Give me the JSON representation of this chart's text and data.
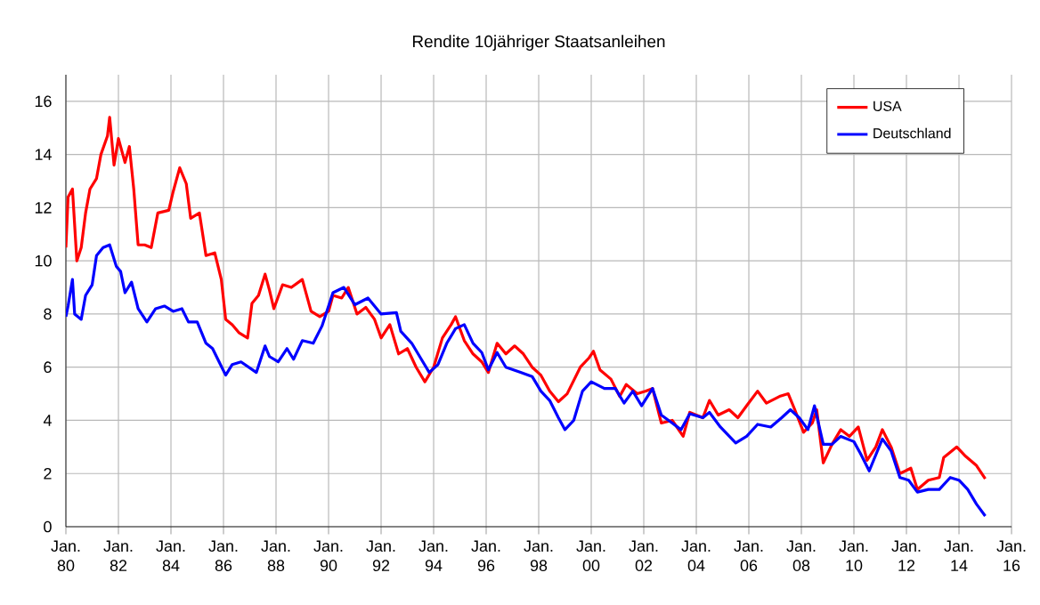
{
  "chart_data": {
    "type": "line",
    "title": "Rendite 10jähriger Staatsanleihen",
    "xlim": [
      "1980-01",
      "2016-01"
    ],
    "ylim": [
      0,
      17
    ],
    "xticks": [
      {
        "value": "1980-01",
        "label": "Jan. 80"
      },
      {
        "value": "1982-01",
        "label": "Jan. 82"
      },
      {
        "value": "1984-01",
        "label": "Jan. 84"
      },
      {
        "value": "1986-01",
        "label": "Jan. 86"
      },
      {
        "value": "1988-01",
        "label": "Jan. 88"
      },
      {
        "value": "1990-01",
        "label": "Jan. 90"
      },
      {
        "value": "1992-01",
        "label": "Jan. 92"
      },
      {
        "value": "1994-01",
        "label": "Jan. 94"
      },
      {
        "value": "1996-01",
        "label": "Jan. 96"
      },
      {
        "value": "1998-01",
        "label": "Jan. 98"
      },
      {
        "value": "2000-01",
        "label": "Jan. 00"
      },
      {
        "value": "2002-01",
        "label": "Jan. 02"
      },
      {
        "value": "2004-01",
        "label": "Jan. 04"
      },
      {
        "value": "2006-01",
        "label": "Jan. 06"
      },
      {
        "value": "2008-01",
        "label": "Jan. 08"
      },
      {
        "value": "2010-01",
        "label": "Jan. 10"
      },
      {
        "value": "2012-01",
        "label": "Jan. 12"
      },
      {
        "value": "2014-01",
        "label": "Jan. 14"
      },
      {
        "value": "2016-01",
        "label": "Jan. 16"
      }
    ],
    "yticks": [
      0,
      2,
      4,
      6,
      8,
      10,
      12,
      14,
      16
    ],
    "grid": true,
    "legend": "top right",
    "marker": "none",
    "line_style": "solid",
    "series": [
      {
        "name": "USA",
        "color": "#ff0000",
        "x": [
          "1980-01",
          "1980-02",
          "1980-04",
          "1980-06",
          "1980-08",
          "1980-10",
          "1980-12",
          "1981-03",
          "1981-05",
          "1981-08",
          "1981-09",
          "1981-11",
          "1982-01",
          "1982-04",
          "1982-06",
          "1982-08",
          "1982-10",
          "1983-01",
          "1983-04",
          "1983-07",
          "1983-12",
          "1984-02",
          "1984-05",
          "1984-08",
          "1984-10",
          "1985-02",
          "1985-05",
          "1985-09",
          "1985-12",
          "1986-02",
          "1986-05",
          "1986-08",
          "1986-12",
          "1987-02",
          "1987-05",
          "1987-08",
          "1987-10",
          "1987-12",
          "1988-04",
          "1988-08",
          "1989-01",
          "1989-05",
          "1989-09",
          "1990-01",
          "1990-03",
          "1990-07",
          "1990-10",
          "1991-02",
          "1991-06",
          "1991-10",
          "1992-01",
          "1992-05",
          "1992-09",
          "1993-01",
          "1993-05",
          "1993-09",
          "1994-01",
          "1994-05",
          "1994-09",
          "1994-11",
          "1995-03",
          "1995-07",
          "1995-11",
          "1996-02",
          "1996-06",
          "1996-10",
          "1997-02",
          "1997-06",
          "1997-10",
          "1998-02",
          "1998-06",
          "1998-10",
          "1999-02",
          "1999-08",
          "1999-12",
          "2000-02",
          "2000-05",
          "2000-10",
          "2001-02",
          "2001-05",
          "2001-10",
          "2002-02",
          "2002-05",
          "2002-09",
          "2003-02",
          "2003-07",
          "2003-10",
          "2004-04",
          "2004-07",
          "2004-11",
          "2005-04",
          "2005-08",
          "2005-12",
          "2006-05",
          "2006-09",
          "2007-03",
          "2007-07",
          "2007-10",
          "2008-02",
          "2008-06",
          "2008-08",
          "2008-11",
          "2009-03",
          "2009-07",
          "2009-11",
          "2010-03",
          "2010-07",
          "2010-11",
          "2011-02",
          "2011-06",
          "2011-10",
          "2012-03",
          "2012-06",
          "2012-11",
          "2013-04",
          "2013-06",
          "2013-12",
          "2014-04",
          "2014-09",
          "2015-01"
        ],
        "values": [
          10.5,
          12.4,
          12.7,
          10.0,
          10.5,
          11.8,
          12.7,
          13.1,
          14.0,
          14.7,
          15.4,
          13.6,
          14.6,
          13.7,
          14.3,
          12.7,
          10.6,
          10.6,
          10.5,
          11.8,
          11.9,
          12.6,
          13.5,
          12.9,
          11.6,
          11.8,
          10.2,
          10.3,
          9.3,
          7.8,
          7.6,
          7.3,
          7.1,
          8.4,
          8.7,
          9.5,
          8.9,
          8.2,
          9.1,
          9.0,
          9.3,
          8.1,
          7.9,
          8.1,
          8.7,
          8.6,
          9.0,
          8.0,
          8.25,
          7.8,
          7.1,
          7.6,
          6.5,
          6.7,
          6.0,
          5.45,
          6.0,
          7.1,
          7.6,
          7.9,
          7.0,
          6.5,
          6.2,
          5.8,
          6.9,
          6.5,
          6.8,
          6.5,
          6.0,
          5.7,
          5.1,
          4.7,
          5.0,
          6.0,
          6.35,
          6.6,
          5.9,
          5.55,
          4.9,
          5.35,
          5.0,
          5.1,
          5.2,
          3.9,
          4.0,
          3.4,
          4.3,
          4.1,
          4.75,
          4.2,
          4.4,
          4.1,
          4.55,
          5.1,
          4.65,
          4.9,
          5.0,
          4.4,
          3.55,
          3.9,
          4.4,
          2.4,
          3.1,
          3.65,
          3.4,
          3.75,
          2.5,
          3.0,
          3.65,
          3.0,
          2.0,
          2.2,
          1.4,
          1.75,
          1.85,
          2.6,
          3.0,
          2.65,
          2.3,
          1.8
        ]
      },
      {
        "name": "Deutschland",
        "color": "#0000ff",
        "x": [
          "1980-01",
          "1980-02",
          "1980-04",
          "1980-05",
          "1980-08",
          "1980-10",
          "1981-01",
          "1981-03",
          "1981-06",
          "1981-09",
          "1981-12",
          "1982-02",
          "1982-04",
          "1982-07",
          "1982-10",
          "1983-02",
          "1983-06",
          "1983-10",
          "1984-02",
          "1984-06",
          "1984-09",
          "1985-01",
          "1985-05",
          "1985-08",
          "1985-11",
          "1986-02",
          "1986-05",
          "1986-09",
          "1987-04",
          "1987-08",
          "1987-10",
          "1988-02",
          "1988-06",
          "1988-09",
          "1989-01",
          "1989-06",
          "1989-10",
          "1990-03",
          "1990-08",
          "1991-01",
          "1991-07",
          "1992-01",
          "1992-08",
          "1992-10",
          "1993-03",
          "1993-07",
          "1993-11",
          "1994-03",
          "1994-07",
          "1994-11",
          "1995-03",
          "1995-07",
          "1995-11",
          "1996-02",
          "1996-06",
          "1996-10",
          "1997-05",
          "1997-10",
          "1998-02",
          "1998-06",
          "1998-10",
          "1999-01",
          "1999-05",
          "1999-09",
          "2000-01",
          "2000-07",
          "2000-12",
          "2001-04",
          "2001-08",
          "2001-12",
          "2002-05",
          "2002-09",
          "2003-02",
          "2003-06",
          "2003-10",
          "2004-04",
          "2004-07",
          "2004-12",
          "2005-07",
          "2005-12",
          "2006-05",
          "2006-11",
          "2007-04",
          "2007-08",
          "2007-12",
          "2008-04",
          "2008-07",
          "2008-11",
          "2009-03",
          "2009-07",
          "2010-01",
          "2010-04",
          "2010-08",
          "2011-02",
          "2011-06",
          "2011-10",
          "2012-02",
          "2012-06",
          "2012-11",
          "2013-04",
          "2013-09",
          "2014-01",
          "2014-05",
          "2014-09",
          "2015-01"
        ],
        "values": [
          7.9,
          8.3,
          9.3,
          8.0,
          7.8,
          8.7,
          9.1,
          10.2,
          10.5,
          10.6,
          9.8,
          9.6,
          8.8,
          9.2,
          8.2,
          7.7,
          8.2,
          8.3,
          8.1,
          8.2,
          7.7,
          7.7,
          6.9,
          6.7,
          6.2,
          5.7,
          6.1,
          6.2,
          5.8,
          6.8,
          6.4,
          6.2,
          6.7,
          6.3,
          7.0,
          6.9,
          7.55,
          8.8,
          9.0,
          8.35,
          8.6,
          8.0,
          8.05,
          7.35,
          6.9,
          6.35,
          5.8,
          6.1,
          6.9,
          7.45,
          7.6,
          6.9,
          6.55,
          5.9,
          6.55,
          6.0,
          5.8,
          5.65,
          5.1,
          4.75,
          4.1,
          3.65,
          4.0,
          5.1,
          5.45,
          5.2,
          5.2,
          4.65,
          5.1,
          4.55,
          5.2,
          4.2,
          3.9,
          3.65,
          4.25,
          4.1,
          4.3,
          3.75,
          3.15,
          3.4,
          3.85,
          3.75,
          4.1,
          4.4,
          4.1,
          3.65,
          4.55,
          3.1,
          3.1,
          3.4,
          3.2,
          2.75,
          2.1,
          3.3,
          2.85,
          1.85,
          1.75,
          1.3,
          1.4,
          1.4,
          1.85,
          1.75,
          1.4,
          0.85,
          0.4
        ]
      }
    ]
  }
}
